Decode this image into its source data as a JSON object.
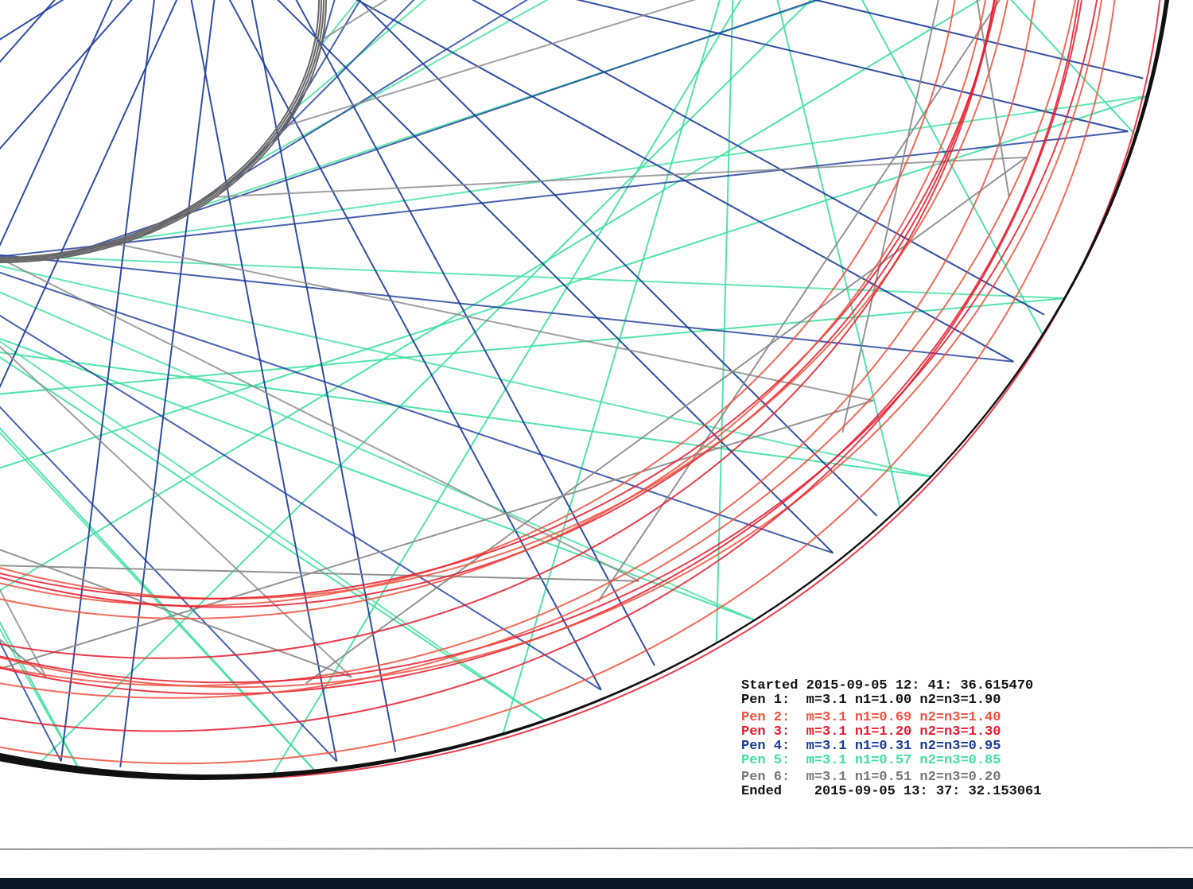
{
  "legend": {
    "lines": [
      {
        "text": "Started 2015-09-05 12: 41: 36.615470",
        "color": "#111111"
      },
      {
        "text": "Pen 1:  m=3.1 n1=1.00 n2=n3=1.90",
        "color": "#111111"
      },
      {
        "text": "Pen 2:  m=3.1 n1=0.69 n2=n3=1.40",
        "color": "#f0503c"
      },
      {
        "text": "Pen 3:  m=3.1 n1=1.20 n2=n3=1.30",
        "color": "#e8192c"
      },
      {
        "text": "Pen 4:  m=3.1 n1=0.31 n2=n3=0.95",
        "color": "#1a3a9a"
      },
      {
        "text": "Pen 5:  m=3.1 n1=0.57 n2=n3=0.85",
        "color": "#3ee0a0"
      },
      {
        "text": "Pen 6:  m=3.1 n1=0.51 n2=n3=0.20",
        "color": "#777777"
      },
      {
        "text": "Ended    2015-09-05 13: 37: 32.153061",
        "color": "#111111"
      }
    ]
  }
}
